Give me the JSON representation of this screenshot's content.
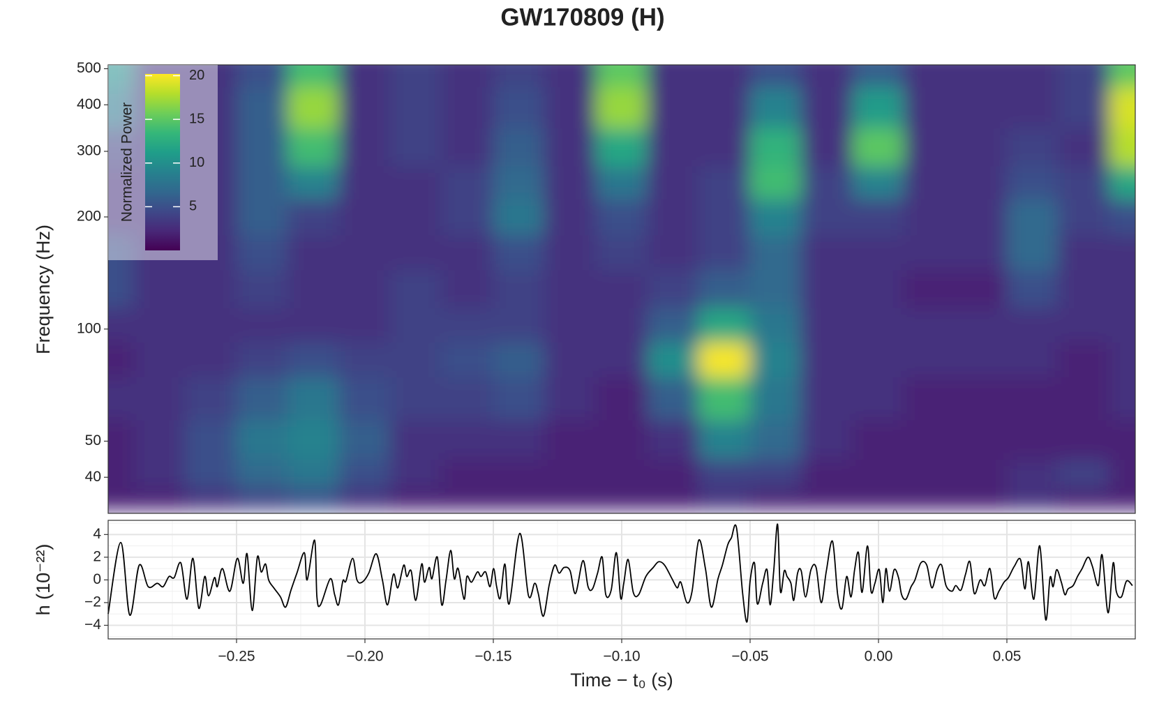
{
  "chart_data": [
    {
      "type": "heatmap",
      "title": "GW170809 (H)",
      "ylabel": "Frequency (Hz)",
      "ylog": true,
      "x": [
        -0.3,
        -0.28,
        -0.26,
        -0.24,
        -0.22,
        -0.2,
        -0.18,
        -0.16,
        -0.14,
        -0.12,
        -0.1,
        -0.08,
        -0.06,
        -0.04,
        -0.02,
        0.0,
        0.02,
        0.04,
        0.06,
        0.08,
        0.1
      ],
      "y": [
        35,
        40,
        50,
        65,
        85,
        100,
        130,
        160,
        200,
        250,
        300,
        400,
        500
      ],
      "z": [
        [
          2,
          2,
          3,
          4,
          5,
          3,
          2,
          2,
          2,
          2,
          2,
          2,
          3,
          2,
          2,
          2,
          2,
          2,
          3,
          2,
          2
        ],
        [
          2,
          3,
          5,
          7,
          8,
          5,
          3,
          2,
          2,
          2,
          2,
          2,
          4,
          4,
          2,
          2,
          2,
          2,
          3,
          4,
          2
        ],
        [
          2,
          3,
          5,
          8,
          9,
          6,
          3,
          3,
          3,
          2,
          2,
          3,
          9,
          7,
          3,
          2,
          2,
          2,
          2,
          2,
          2
        ],
        [
          3,
          3,
          4,
          6,
          8,
          5,
          4,
          4,
          5,
          3,
          2,
          6,
          14,
          8,
          3,
          3,
          2,
          2,
          2,
          2,
          3
        ],
        [
          2,
          3,
          3,
          4,
          5,
          4,
          4,
          5,
          6,
          3,
          3,
          10,
          20,
          9,
          3,
          3,
          3,
          3,
          3,
          2,
          3
        ],
        [
          3,
          3,
          3,
          3,
          3,
          3,
          4,
          4,
          4,
          3,
          3,
          6,
          12,
          8,
          3,
          3,
          3,
          3,
          3,
          3,
          3
        ],
        [
          5,
          3,
          3,
          4,
          3,
          3,
          4,
          3,
          4,
          3,
          3,
          4,
          6,
          7,
          3,
          3,
          2,
          2,
          5,
          3,
          3
        ],
        [
          5,
          3,
          3,
          5,
          3,
          3,
          3,
          3,
          5,
          3,
          4,
          3,
          4,
          7,
          3,
          3,
          3,
          3,
          7,
          3,
          3
        ],
        [
          3,
          3,
          3,
          6,
          4,
          3,
          3,
          4,
          8,
          3,
          5,
          3,
          4,
          9,
          4,
          4,
          3,
          3,
          7,
          4,
          5
        ],
        [
          3,
          3,
          3,
          6,
          9,
          3,
          3,
          4,
          7,
          3,
          8,
          3,
          4,
          14,
          4,
          9,
          3,
          3,
          5,
          4,
          12
        ],
        [
          4,
          3,
          3,
          6,
          14,
          3,
          4,
          3,
          6,
          3,
          12,
          3,
          3,
          13,
          3,
          15,
          3,
          3,
          4,
          3,
          18
        ],
        [
          8,
          3,
          3,
          6,
          17,
          3,
          4,
          3,
          5,
          3,
          17,
          3,
          3,
          9,
          3,
          11,
          3,
          3,
          3,
          4,
          19
        ],
        [
          10,
          3,
          3,
          5,
          14,
          3,
          4,
          3,
          4,
          3,
          15,
          3,
          3,
          5,
          3,
          6,
          3,
          3,
          3,
          4,
          15
        ]
      ],
      "xlim": [
        -0.3,
        0.1
      ],
      "ylim": [
        32,
        512
      ],
      "yticks": [
        40,
        50,
        100,
        200,
        300,
        400,
        500
      ],
      "colorbar": {
        "title": "Normalized Power",
        "zlim": [
          0,
          20.2
        ],
        "ticks": [
          5,
          10,
          15,
          20
        ],
        "colors": [
          "#440154",
          "#482878",
          "#3e4989",
          "#31688e",
          "#26828e",
          "#1f9e89",
          "#35b779",
          "#6ece58",
          "#b5de2b",
          "#fde725"
        ]
      },
      "legend": "top-left"
    },
    {
      "type": "line",
      "xlabel": "Time − t₀ (s)",
      "ylabel": "h (10⁻²²)",
      "color": "#000000",
      "grid": true,
      "x": [
        -0.3,
        -0.2951,
        -0.2916,
        -0.2879,
        -0.2844,
        -0.2809,
        -0.2786,
        -0.2763,
        -0.2743,
        -0.2717,
        -0.2693,
        -0.267,
        -0.2647,
        -0.2624,
        -0.2609,
        -0.2586,
        -0.2575,
        -0.2555,
        -0.2526,
        -0.2497,
        -0.2474,
        -0.2459,
        -0.2439,
        -0.2419,
        -0.2404,
        -0.2387,
        -0.2375,
        -0.2355,
        -0.2329,
        -0.2309,
        -0.2288,
        -0.2265,
        -0.2236,
        -0.2225,
        -0.2196,
        -0.2187,
        -0.2173,
        -0.2135,
        -0.2118,
        -0.2103,
        -0.2086,
        -0.2074,
        -0.2048,
        -0.2031,
        -0.2011,
        -0.1985,
        -0.1956,
        -0.1932,
        -0.1912,
        -0.1889,
        -0.1872,
        -0.1849,
        -0.1837,
        -0.182,
        -0.1802,
        -0.1779,
        -0.1768,
        -0.175,
        -0.1739,
        -0.1718,
        -0.1701,
        -0.1684,
        -0.1666,
        -0.1652,
        -0.1637,
        -0.1614,
        -0.1603,
        -0.1585,
        -0.1562,
        -0.1548,
        -0.153,
        -0.1513,
        -0.1499,
        -0.1487,
        -0.1473,
        -0.1455,
        -0.1438,
        -0.1397,
        -0.1363,
        -0.1339,
        -0.1325,
        -0.1305,
        -0.1282,
        -0.1261,
        -0.1244,
        -0.1224,
        -0.1201,
        -0.118,
        -0.1151,
        -0.1131,
        -0.1114,
        -0.1094,
        -0.1076,
        -0.1062,
        -0.1041,
        -0.1021,
        -0.1004,
        -0.0992,
        -0.0975,
        -0.0955,
        -0.0934,
        -0.0906,
        -0.0877,
        -0.0856,
        -0.0833,
        -0.0804,
        -0.0784,
        -0.077,
        -0.0746,
        -0.0726,
        -0.07,
        -0.0674,
        -0.0651,
        -0.0625,
        -0.0608,
        -0.0587,
        -0.0573,
        -0.0553,
        -0.0529,
        -0.0512,
        -0.05,
        -0.0483,
        -0.0472,
        -0.0451,
        -0.0434,
        -0.0422,
        -0.0408,
        -0.0393,
        -0.0382,
        -0.0367,
        -0.0356,
        -0.0341,
        -0.033,
        -0.0315,
        -0.0301,
        -0.0284,
        -0.0263,
        -0.0243,
        -0.0223,
        -0.0203,
        -0.0179,
        -0.0159,
        -0.0142,
        -0.0124,
        -0.0107,
        -0.0093,
        -0.0078,
        -0.0064,
        -0.0043,
        -0.0029,
        -0.0014,
        0.0003,
        0.0017,
        0.0029,
        0.0043,
        0.0061,
        0.0078,
        0.009,
        0.0107,
        0.0127,
        0.0142,
        0.0165,
        0.0188,
        0.0208,
        0.0229,
        0.0246,
        0.0263,
        0.0286,
        0.0301,
        0.0321,
        0.0339,
        0.0356,
        0.0373,
        0.0396,
        0.0414,
        0.0434,
        0.0451,
        0.0469,
        0.0489,
        0.0506,
        0.0529,
        0.0553,
        0.057,
        0.0584,
        0.0605,
        0.0628,
        0.0651,
        0.0668,
        0.068,
        0.0694,
        0.0712,
        0.0726,
        0.0738,
        0.0758,
        0.0775,
        0.0793,
        0.0816,
        0.0833,
        0.0856,
        0.0871,
        0.0894,
        0.0914,
        0.0926,
        0.0946,
        0.0966,
        0.0989
      ],
      "values": [
        -3.0,
        3.3,
        -3.1,
        1.3,
        -0.6,
        -0.3,
        -0.6,
        0.3,
        0.2,
        1.5,
        -1.7,
        1.9,
        -2.5,
        0.3,
        -1.4,
        0.2,
        -0.6,
        1.0,
        -1.0,
        1.9,
        -0.3,
        2.3,
        -2.7,
        2.0,
        0.7,
        1.4,
        0.0,
        -0.7,
        -1.5,
        -2.4,
        -0.9,
        0.6,
        2.4,
        0.0,
        3.5,
        -1.5,
        -2.2,
        0.1,
        -1.3,
        -2.2,
        -0.1,
        -0.1,
        1.9,
        0.0,
        -0.2,
        0.6,
        2.3,
        0.0,
        -2.2,
        0.5,
        -0.7,
        1.3,
        0.3,
        0.8,
        -1.8,
        1.4,
        -0.2,
        1.1,
        0.1,
        2.0,
        -2.2,
        0.0,
        2.6,
        0.1,
        1.0,
        -1.7,
        0.3,
        -0.2,
        0.7,
        0.3,
        0.7,
        -0.6,
        1.0,
        -0.6,
        -1.6,
        1.4,
        -2.1,
        4.1,
        -1.4,
        -0.3,
        -1.2,
        -3.2,
        -0.4,
        1.3,
        0.6,
        1.1,
        0.8,
        -1.2,
        1.7,
        -0.6,
        -0.8,
        0.6,
        2.0,
        -1.3,
        -0.9,
        2.4,
        -1.6,
        -0.3,
        1.8,
        -1.1,
        -1.3,
        0.3,
        1.1,
        1.6,
        1.3,
        0.1,
        -0.7,
        -0.2,
        -2.0,
        -1.0,
        3.5,
        1.0,
        -2.4,
        0.1,
        1.3,
        3.1,
        3.7,
        4.6,
        -1.2,
        -3.7,
        -0.1,
        1.5,
        -2.1,
        -0.3,
        0.9,
        -2.2,
        0.8,
        4.9,
        -1.0,
        0.8,
        0.3,
        -0.3,
        -1.8,
        0.6,
        0.8,
        -1.5,
        0.9,
        1.1,
        -2.0,
        0.8,
        3.4,
        -1.3,
        -2.5,
        0.3,
        -1.5,
        0.9,
        2.4,
        -1.1,
        3.0,
        -1.0,
        -0.3,
        0.9,
        -2.0,
        1.0,
        -1.0,
        0.9,
        0.2,
        -1.3,
        -1.7,
        -0.6,
        0.0,
        1.5,
        1.3,
        -0.7,
        0.9,
        1.3,
        -0.5,
        -1.0,
        -0.5,
        -0.9,
        0.5,
        1.6,
        -1.2,
        0.0,
        -0.5,
        1.0,
        -1.6,
        -1.0,
        -0.2,
        0.2,
        1.2,
        1.8,
        -0.8,
        1.6,
        -1.7,
        3.0,
        -3.5,
        0.2,
        -0.6,
        0.9,
        -0.2,
        -1.3,
        -0.8,
        -0.5,
        0.3,
        1.0,
        2.0,
        1.2,
        -0.5,
        2.2,
        -2.9,
        1.5,
        -1.0,
        -1.5,
        -0.1,
        -0.5
      ],
      "xlim": [
        -0.3,
        0.1
      ],
      "xticks": [
        {
          "value": -0.25,
          "label": "−0.25"
        },
        {
          "value": -0.2,
          "label": "−0.20"
        },
        {
          "value": -0.15,
          "label": "−0.15"
        },
        {
          "value": -0.1,
          "label": "−0.10"
        },
        {
          "value": -0.05,
          "label": "−0.05"
        },
        {
          "value": 0,
          "label": "0.00"
        },
        {
          "value": 0.05,
          "label": "0.05"
        }
      ],
      "ylim": [
        -5.2,
        5.25
      ],
      "yticks": [
        {
          "value": -4,
          "label": "−4"
        },
        {
          "value": -2,
          "label": "−2"
        },
        0,
        2,
        4
      ]
    }
  ]
}
